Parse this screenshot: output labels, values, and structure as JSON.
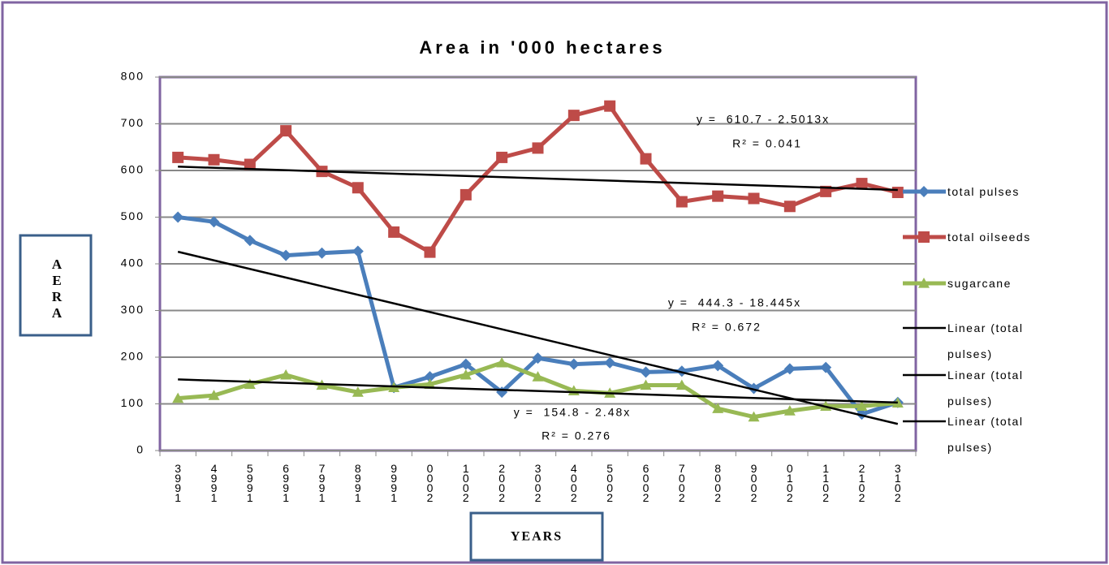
{
  "chart_data": {
    "type": "line",
    "title": "Area in '000 hectares",
    "xlabel": "YEARS",
    "ylabel": "AERA",
    "categories": [
      "1993",
      "1994",
      "1995",
      "1996",
      "1997",
      "1998",
      "1999",
      "2000",
      "2001",
      "2002",
      "2003",
      "2004",
      "2005",
      "2006",
      "2007",
      "2008",
      "2009",
      "2010",
      "2011",
      "2012",
      "2013"
    ],
    "series": [
      {
        "name": "total pulses",
        "color": "#4a7ebb",
        "marker": "diamond",
        "values": [
          500,
          490,
          450,
          418,
          423,
          427,
          135,
          158,
          185,
          125,
          198,
          185,
          188,
          168,
          170,
          182,
          133,
          175,
          178,
          78,
          103
        ]
      },
      {
        "name": "total oilseeds",
        "color": "#be4b48",
        "marker": "square",
        "values": [
          628,
          623,
          613,
          685,
          598,
          563,
          468,
          425,
          548,
          628,
          648,
          718,
          738,
          625,
          533,
          545,
          540,
          523,
          555,
          572,
          553
        ]
      },
      {
        "name": "sugarcane",
        "color": "#98b954",
        "marker": "triangle",
        "values": [
          112,
          118,
          142,
          162,
          140,
          125,
          135,
          142,
          162,
          188,
          158,
          128,
          123,
          140,
          140,
          90,
          72,
          85,
          95,
          95,
          102
        ]
      }
    ],
    "trendlines": [
      {
        "name": "Linear (total pulses)",
        "color": "#000000",
        "intercept": 444.3,
        "slope": -18.445,
        "equation": "y =  444.3 - 18.445x",
        "r2": "R² = 0.672"
      },
      {
        "name": "Linear (total pulses)",
        "color": "#000000",
        "intercept": 610.7,
        "slope": -2.5013,
        "equation": "y =  610.7 - 2.5013x",
        "r2": "R² = 0.041"
      },
      {
        "name": "Linear (total pulses)",
        "color": "#000000",
        "intercept": 154.8,
        "slope": -2.48,
        "equation": "y =  154.8 - 2.48x",
        "r2": "R² = 0.276"
      }
    ],
    "ylim": [
      0,
      800
    ],
    "yticks": [
      0,
      100,
      200,
      300,
      400,
      500,
      600,
      700,
      800
    ],
    "grid": true
  }
}
